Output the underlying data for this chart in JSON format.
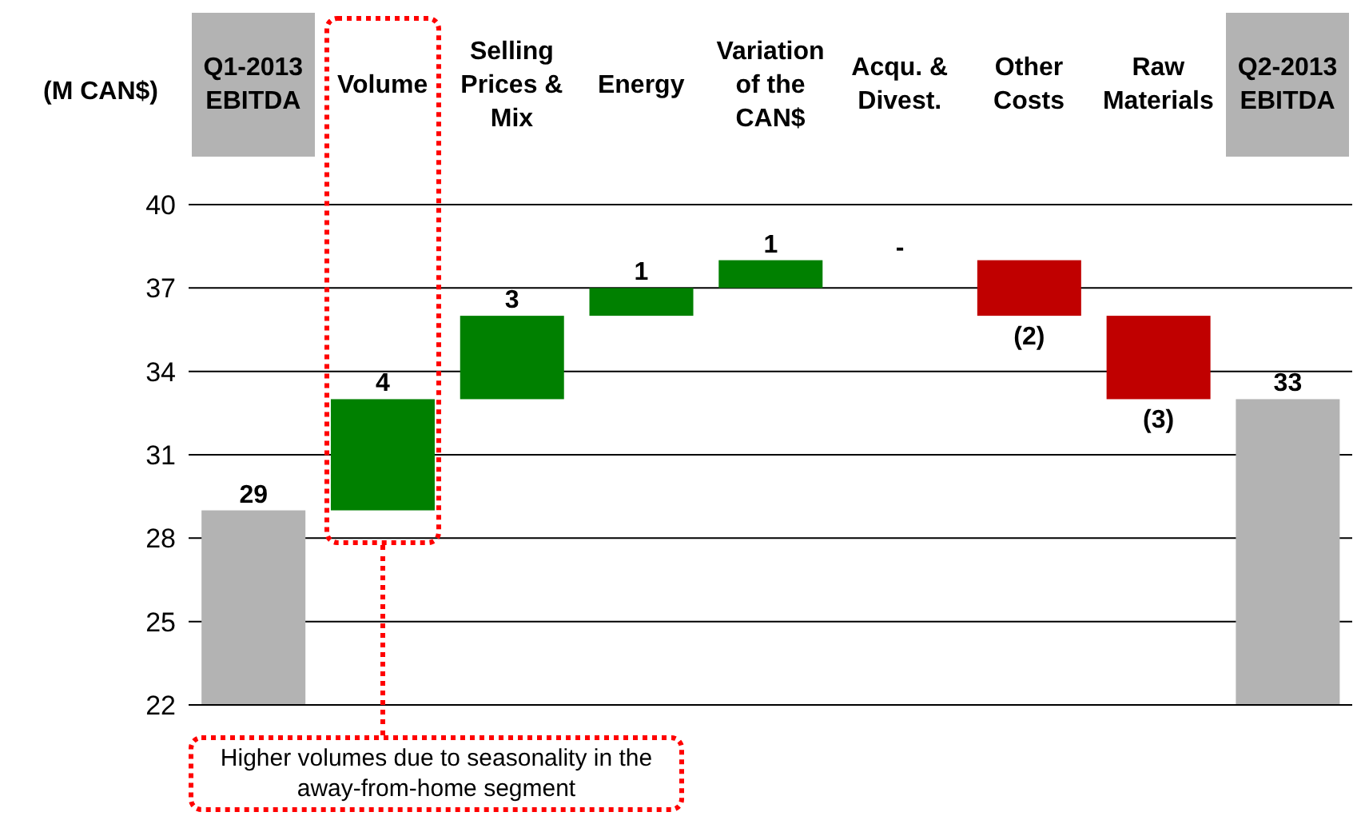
{
  "chart_data": {
    "type": "bar",
    "ylabel": "(M CAN$)",
    "categories": [
      "Q1-2013 EBITDA",
      "Volume",
      "Selling Prices & Mix",
      "Energy",
      "Variation of the CAN$",
      "Acqu. & Divest.",
      "Other Costs",
      "Raw Materials",
      "Q2-2013 EBITDA"
    ],
    "values": [
      29,
      4,
      3,
      1,
      1,
      null,
      -2,
      -3,
      33
    ],
    "base": [
      null,
      29,
      33,
      36,
      37,
      null,
      38,
      36,
      null
    ],
    "colors": [
      "#b3b3b3",
      "#008000",
      "#008000",
      "#008000",
      "#008000",
      "#008000",
      "#c00000",
      "#c00000",
      "#b3b3b3"
    ],
    "value_labels": [
      "29",
      "4",
      "3",
      "1",
      "1",
      "-",
      "(2)",
      "(3)",
      "33"
    ],
    "ylim": [
      22,
      40
    ],
    "yticks": [
      22,
      25,
      28,
      31,
      34,
      37,
      40
    ],
    "grid": "y",
    "tick_labels": "y",
    "annotations": [
      "Higher volumes due to seasonality in the away-from-home segment"
    ]
  }
}
